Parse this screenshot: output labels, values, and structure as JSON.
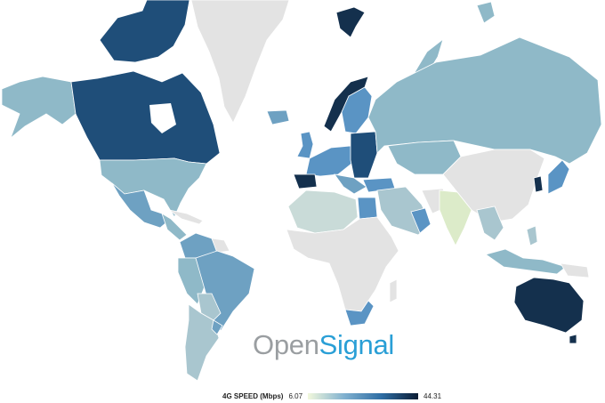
{
  "brand": {
    "part1": "Open",
    "part2": "Signal"
  },
  "legend": {
    "title": "4G SPEED (Mbps)",
    "min": "6.07",
    "max": "44.31"
  },
  "colors": {
    "no_data": "#e3e3e3",
    "scale_low": "#f2f8dc",
    "scale_mid": "#7fb0cf",
    "scale_high": "#0b1c33",
    "brand_gray": "#9a9ea1",
    "brand_blue": "#2a9fd6"
  }
}
